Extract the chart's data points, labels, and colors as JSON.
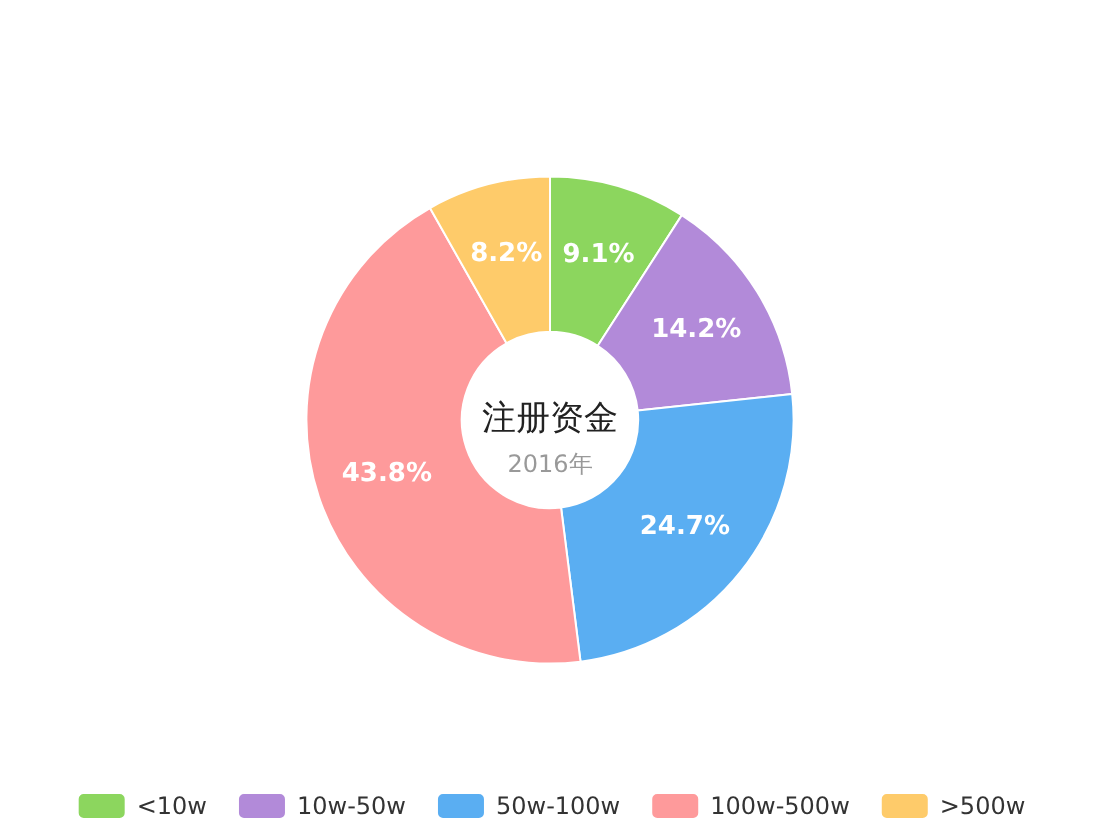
{
  "chart_data": {
    "type": "donut",
    "title": "注册资金",
    "subtitle": "2016年",
    "categories": [
      "<10w",
      "10w-50w",
      "50w-100w",
      "100w-500w",
      ">500w"
    ],
    "values": [
      9.1,
      14.2,
      24.7,
      43.8,
      8.2
    ],
    "value_labels": [
      "9.1%",
      "14.2%",
      "24.7%",
      "43.8%",
      "8.2%"
    ],
    "colors": [
      "#8cd65e",
      "#b28ad9",
      "#5aaef2",
      "#fe9a9b",
      "#fecb6a"
    ],
    "legend": "bottom"
  }
}
